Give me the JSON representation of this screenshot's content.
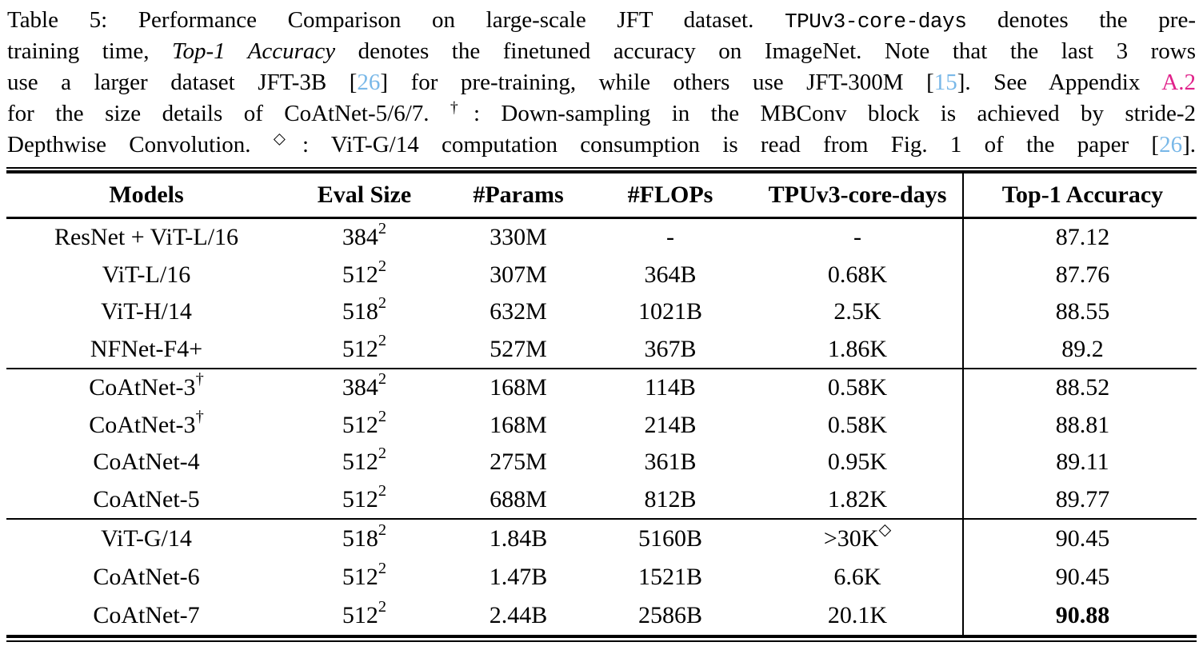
{
  "colors": {
    "text": "#000000",
    "background": "#ffffff",
    "citation_link": "#79b8e8",
    "appendix_link": "#e0218a"
  },
  "caption": {
    "lines": [
      [
        {
          "t": "Table 5: Performance Comparison on large-scale JFT dataset. "
        },
        {
          "t": "TPUv3-core-days",
          "s": "mono"
        },
        {
          "t": " denotes the pre-"
        }
      ],
      [
        {
          "t": "training time, "
        },
        {
          "t": "Top-1 Accuracy",
          "s": "italic"
        },
        {
          "t": " denotes the finetuned accuracy on ImageNet. Note that the last 3 rows"
        }
      ],
      [
        {
          "t": "use a larger dataset JFT-3B ["
        },
        {
          "t": "26",
          "s": "cite"
        },
        {
          "t": "] for pre-training, while others use JFT-300M ["
        },
        {
          "t": "15",
          "s": "cite"
        },
        {
          "t": "]. See Appendix "
        },
        {
          "t": "A.2",
          "s": "ref"
        }
      ],
      [
        {
          "t": "for the size details of CoAtNet-5/6/7. "
        },
        {
          "t": "†",
          "s": "sup"
        },
        {
          "t": ": Down-sampling in the MBConv block is achieved by stride-2"
        }
      ],
      [
        {
          "t": "Depthwise Convolution. "
        },
        {
          "t": "◇",
          "s": "sup"
        },
        {
          "t": ": ViT-G/14 computation consumption is read from Fig. 1 of the paper ["
        },
        {
          "t": "26",
          "s": "cite"
        },
        {
          "t": "]."
        }
      ]
    ]
  },
  "table": {
    "columns": [
      "Models",
      "Eval Size",
      "#Params",
      "#FLOPs",
      "TPUv3-core-days",
      "Top-1 Accuracy"
    ],
    "groups": [
      {
        "rows": [
          [
            "ResNet + ViT-L/16",
            "384^2",
            "330M",
            "-",
            "-",
            "87.12"
          ],
          [
            "ViT-L/16",
            "512^2",
            "307M",
            "364B",
            "0.68K",
            "87.76"
          ],
          [
            "ViT-H/14",
            "518^2",
            "632M",
            "1021B",
            "2.5K",
            "88.55"
          ],
          [
            "NFNet-F4+",
            "512^2",
            "527M",
            "367B",
            "1.86K",
            "89.2"
          ]
        ]
      },
      {
        "rows": [
          [
            "CoAtNet-3^†",
            "384^2",
            "168M",
            "114B",
            "0.58K",
            "88.52"
          ],
          [
            "CoAtNet-3^†",
            "512^2",
            "168M",
            "214B",
            "0.58K",
            "88.81"
          ],
          [
            "CoAtNet-4",
            "512^2",
            "275M",
            "361B",
            "0.95K",
            "89.11"
          ],
          [
            "CoAtNet-5",
            "512^2",
            "688M",
            "812B",
            "1.82K",
            "89.77"
          ]
        ]
      },
      {
        "rows": [
          [
            "ViT-G/14",
            "518^2",
            "1.84B",
            "5160B",
            ">30K^◇",
            "90.45"
          ],
          [
            "CoAtNet-6",
            "512^2",
            "1.47B",
            "1521B",
            "6.6K",
            "90.45"
          ],
          [
            "CoAtNet-7",
            "512^2",
            "2.44B",
            "2586B",
            "20.1K",
            "90.88"
          ]
        ],
        "bold_cells": [
          [
            2,
            5
          ]
        ]
      }
    ]
  }
}
